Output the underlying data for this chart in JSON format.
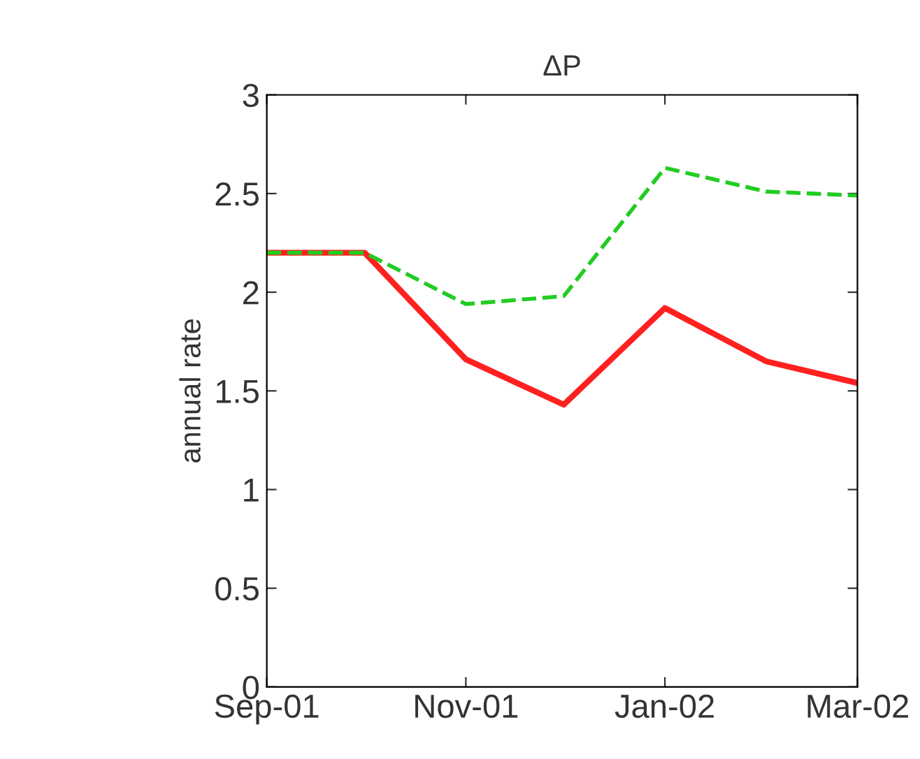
{
  "chart_data": {
    "type": "line",
    "title": "ΔP",
    "ylabel": "annual rate",
    "x": [
      "2001-09",
      "2001-10",
      "2001-11",
      "2001-12",
      "2002-01",
      "2002-02",
      "2002-03"
    ],
    "series": [
      {
        "color": "#ff2020",
        "line_style": "solid",
        "values": [
          2.2,
          2.2,
          1.66,
          1.43,
          1.92,
          1.65,
          1.54
        ]
      },
      {
        "color": "#22cc22",
        "line_style": "dashed",
        "values": [
          2.2,
          2.2,
          1.94,
          1.98,
          2.63,
          2.51,
          2.49
        ]
      }
    ],
    "xlim": [
      "2001-09",
      "2002-03"
    ],
    "xticks": [
      {
        "value": "2001-09",
        "label": "Sep-01"
      },
      {
        "value": "2001-11",
        "label": "Nov-01"
      },
      {
        "value": "2002-01",
        "label": "Jan-02"
      },
      {
        "value": "2002-03",
        "label": "Mar-02"
      }
    ],
    "ylim": [
      0,
      3
    ],
    "yticks": [
      0,
      0.5,
      1,
      1.5,
      2,
      2.5,
      3
    ],
    "grid": false,
    "legend": false
  }
}
